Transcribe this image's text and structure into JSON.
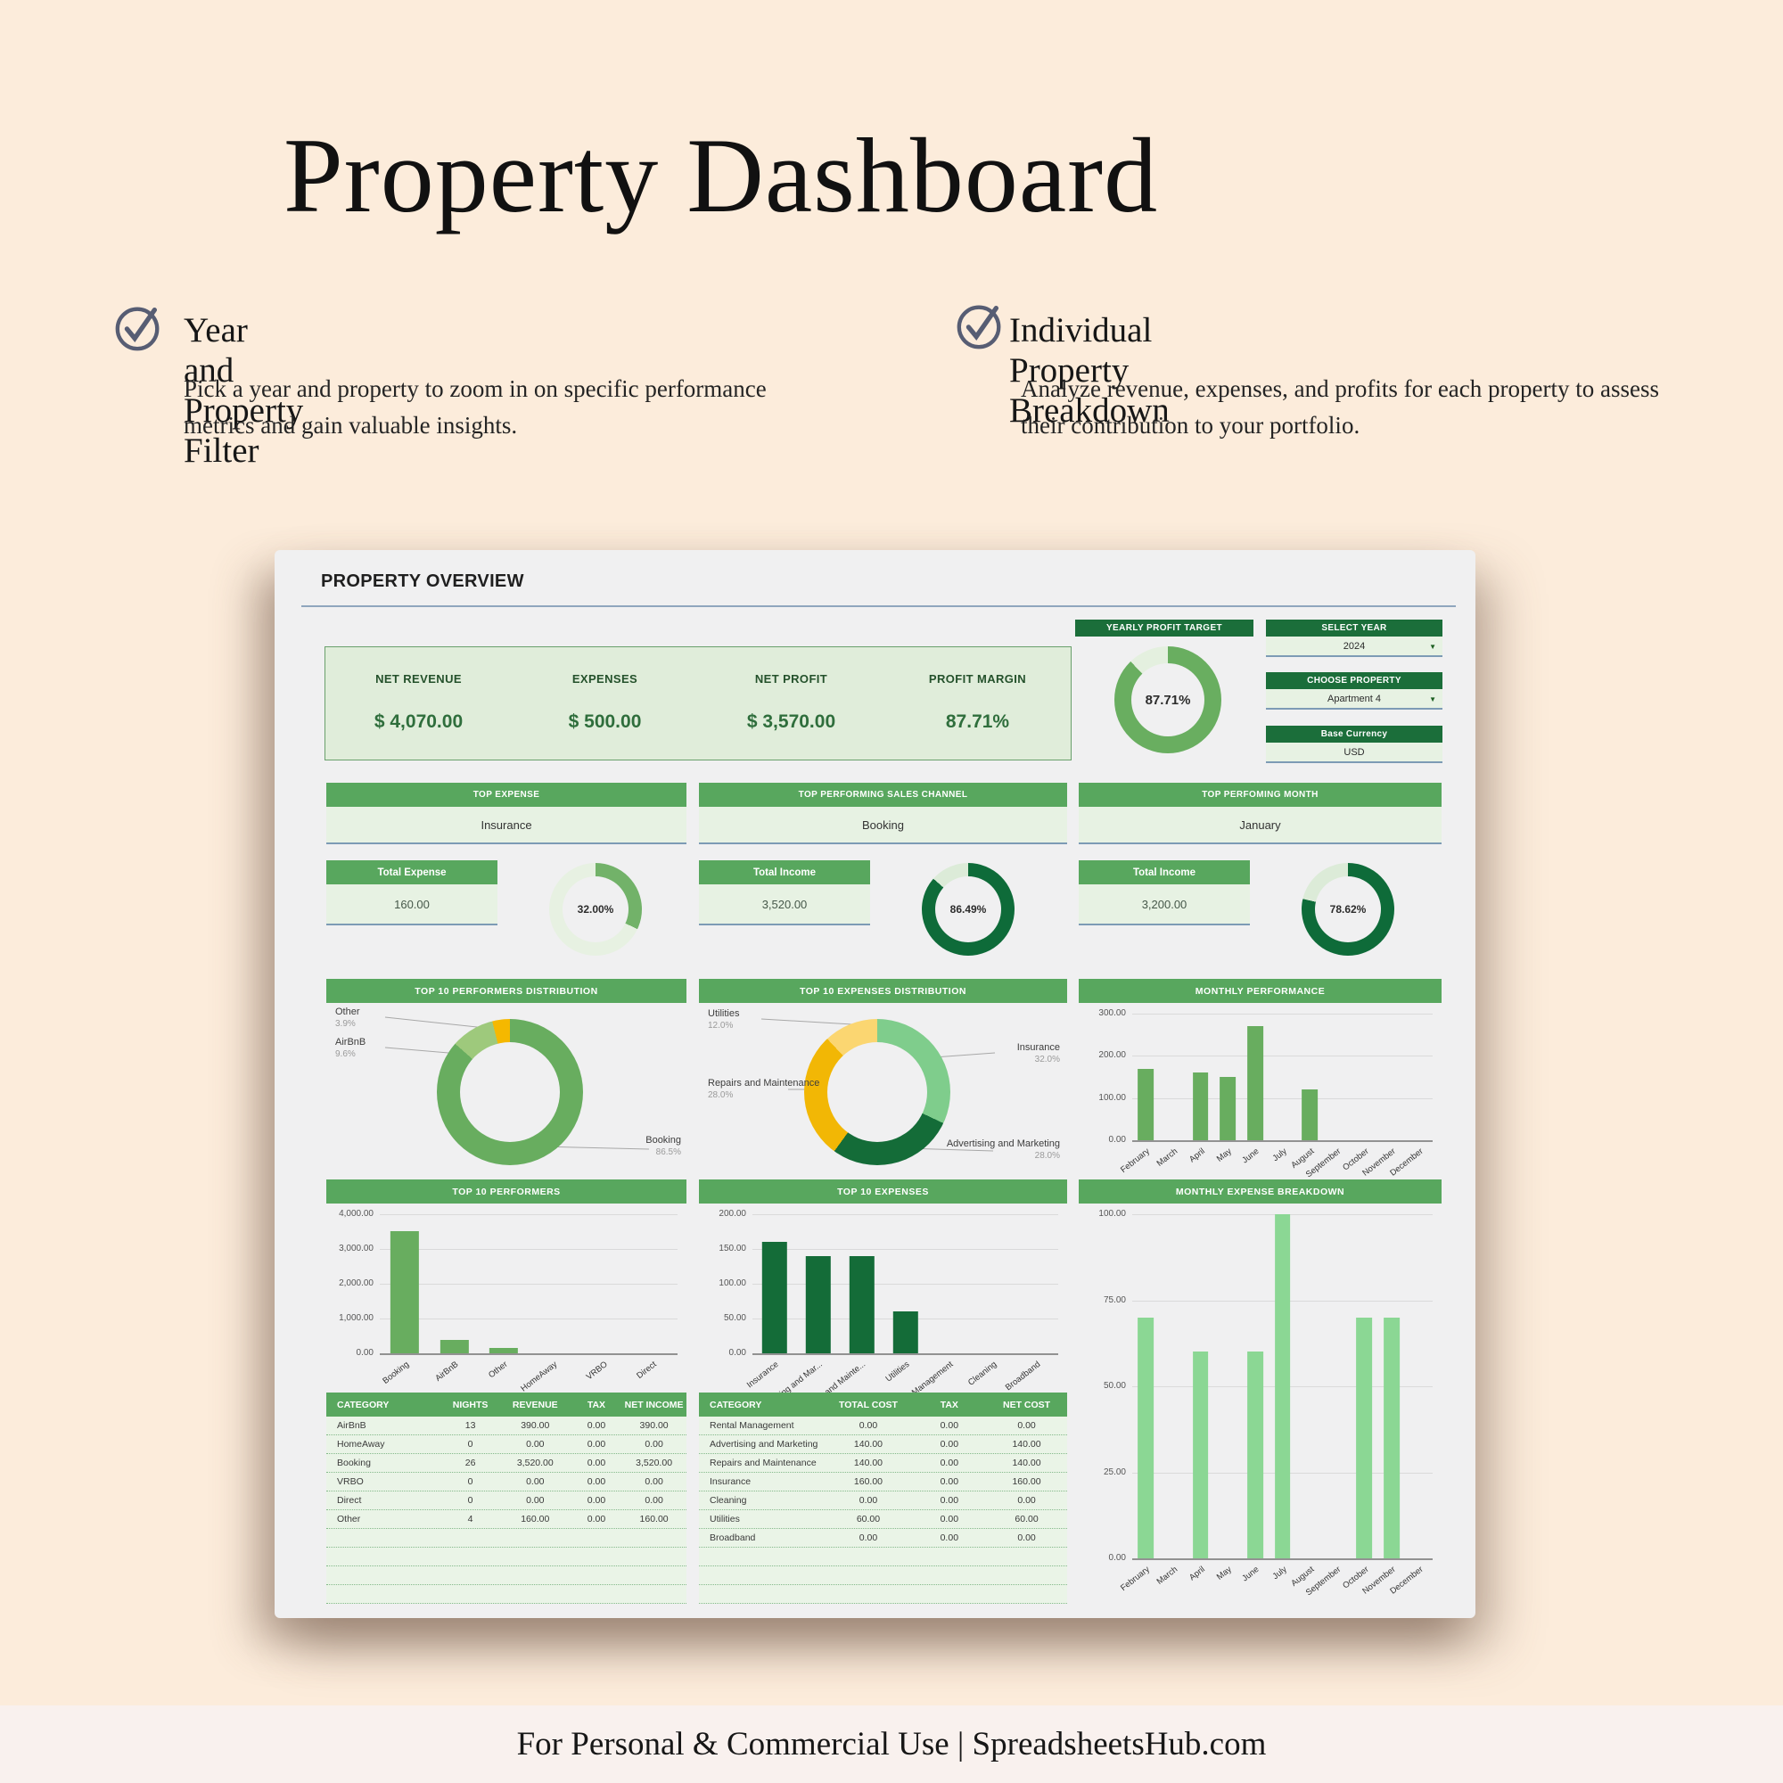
{
  "page": {
    "title": "Property Dashboard",
    "footer": "For Personal & Commercial Use  |  SpreadsheetsHub.com"
  },
  "features": [
    {
      "title": "Year and Property Filter",
      "description": "Pick a year and property to zoom in on specific performance metrics and gain valuable insights."
    },
    {
      "title": "Individual Property Breakdown",
      "description": "Analyze revenue, expenses, and profits for each property to assess their contribution to your portfolio."
    }
  ],
  "dashboard": {
    "title": "PROPERTY OVERVIEW",
    "kpis": [
      {
        "label": "NET REVENUE",
        "value": "$ 4,070.00"
      },
      {
        "label": "EXPENSES",
        "value": "$ 500.00"
      },
      {
        "label": "NET PROFIT",
        "value": "$ 3,570.00"
      },
      {
        "label": "PROFIT MARGIN",
        "value": "87.71%"
      }
    ],
    "yearly_profit_target": {
      "title": "YEARLY PROFIT TARGET",
      "value_label": "87.71%",
      "percent": 87.71,
      "color": "#69ae60",
      "rest_color": "#e4f0df"
    },
    "filters": [
      {
        "label": "SELECT YEAR",
        "value": "2024"
      },
      {
        "label": "CHOOSE PROPERTY",
        "value": "Apartment 4"
      },
      {
        "label": "Base Currency",
        "value": "USD"
      }
    ],
    "highlights": [
      {
        "label": "TOP EXPENSE",
        "value": "Insurance"
      },
      {
        "label": "TOP PERFORMING SALES CHANNEL",
        "value": "Booking"
      },
      {
        "label": "TOP PERFOMING MONTH",
        "value": "January"
      }
    ],
    "gauges": [
      {
        "label": "Total Expense",
        "value": "160.00",
        "value_label": "32.00%",
        "percent": 32.0,
        "color": "#72b269",
        "rest_color": "#e7f1e2"
      },
      {
        "label": "Total Income",
        "value": "3,520.00",
        "value_label": "86.49%",
        "percent": 86.49,
        "color": "#0e6b39",
        "rest_color": "#dcebd8"
      },
      {
        "label": "Total Income",
        "value": "3,200.00",
        "value_label": "78.62%",
        "percent": 78.62,
        "color": "#0e6b39",
        "rest_color": "#dcebd8"
      }
    ],
    "tables": [
      {
        "headers": [
          "CATEGORY",
          "NIGHTS",
          "REVENUE",
          "TAX",
          "NET INCOME"
        ],
        "rows": [
          [
            "AirBnB",
            "13",
            "390.00",
            "0.00",
            "390.00"
          ],
          [
            "HomeAway",
            "0",
            "0.00",
            "0.00",
            "0.00"
          ],
          [
            "Booking",
            "26",
            "3,520.00",
            "0.00",
            "3,520.00"
          ],
          [
            "VRBO",
            "0",
            "0.00",
            "0.00",
            "0.00"
          ],
          [
            "Direct",
            "0",
            "0.00",
            "0.00",
            "0.00"
          ],
          [
            "Other",
            "4",
            "160.00",
            "0.00",
            "160.00"
          ],
          [
            "",
            "",
            "",
            "",
            ""
          ],
          [
            "",
            "",
            "",
            "",
            ""
          ],
          [
            "",
            "",
            "",
            "",
            ""
          ],
          [
            "",
            "",
            "",
            "",
            ""
          ]
        ]
      },
      {
        "headers": [
          "CATEGORY",
          "TOTAL COST",
          "TAX",
          "NET COST"
        ],
        "rows": [
          [
            "Rental Management",
            "0.00",
            "0.00",
            "0.00"
          ],
          [
            "Advertising and Marketing",
            "140.00",
            "0.00",
            "140.00"
          ],
          [
            "Repairs and Maintenance",
            "140.00",
            "0.00",
            "140.00"
          ],
          [
            "Insurance",
            "160.00",
            "0.00",
            "160.00"
          ],
          [
            "Cleaning",
            "0.00",
            "0.00",
            "0.00"
          ],
          [
            "Utilities",
            "60.00",
            "0.00",
            "60.00"
          ],
          [
            "Broadband",
            "0.00",
            "0.00",
            "0.00"
          ],
          [
            "",
            "",
            "",
            ""
          ],
          [
            "",
            "",
            "",
            ""
          ],
          [
            "",
            "",
            "",
            ""
          ]
        ]
      }
    ]
  },
  "chart_data": [
    {
      "type": "pie",
      "title": "TOP 10 PERFORMERS DISTRIBUTION",
      "labels": [
        "Booking",
        "AirBnB",
        "Other"
      ],
      "values": [
        86.5,
        9.6,
        3.9
      ],
      "colors": [
        "#68ad5f",
        "#9ec97c",
        "#f5b800"
      ],
      "annotations": [
        {
          "label": "Other",
          "pct": "3.9%"
        },
        {
          "label": "AirBnB",
          "pct": "9.6%"
        },
        {
          "label": "Booking",
          "pct": "86.5%"
        }
      ]
    },
    {
      "type": "pie",
      "title": "TOP 10 EXPENSES DISTRIBUTION",
      "labels": [
        "Insurance",
        "Advertising and Marketing",
        "Repairs and Maintenance",
        "Utilities"
      ],
      "values": [
        32.0,
        28.0,
        28.0,
        12.0
      ],
      "colors": [
        "#7fcd8c",
        "#146c38",
        "#f2b705",
        "#fbd671"
      ],
      "annotations": [
        {
          "label": "Utilities",
          "pct": "12.0%"
        },
        {
          "label": "Insurance",
          "pct": "32.0%"
        },
        {
          "label": "Repairs and Maintenance",
          "pct": "28.0%"
        },
        {
          "label": "Advertising and Marketing",
          "pct": "28.0%"
        }
      ]
    },
    {
      "type": "bar",
      "title": "MONTHLY PERFORMANCE",
      "categories": [
        "February",
        "March",
        "April",
        "May",
        "June",
        "July",
        "August",
        "September",
        "October",
        "November",
        "December"
      ],
      "values": [
        170,
        0,
        160,
        150,
        270,
        0,
        120,
        0,
        0,
        0,
        0
      ],
      "ylim": [
        0,
        300
      ],
      "yticks": [
        "300.00",
        "200.00",
        "100.00",
        "0.00"
      ],
      "bar_color": "#68ad5f"
    },
    {
      "type": "bar",
      "title": "TOP 10 PERFORMERS",
      "categories": [
        "Booking",
        "AirBnB",
        "Other",
        "HomeAway",
        "VRBO",
        "Direct"
      ],
      "values": [
        3520,
        390,
        160,
        0,
        0,
        0
      ],
      "ylim": [
        0,
        4000
      ],
      "yticks": [
        "4,000.00",
        "3,000.00",
        "2,000.00",
        "1,000.00",
        "0.00"
      ],
      "bar_color": "#68ad5f"
    },
    {
      "type": "bar",
      "title": "TOP 10 EXPENSES",
      "categories": [
        "Insurance",
        "Advertising and Mar...",
        "Repairs and Mainte...",
        "Utilities",
        "Rental Management",
        "Cleaning",
        "Broadband"
      ],
      "values": [
        160,
        140,
        140,
        60,
        0,
        0,
        0
      ],
      "ylim": [
        0,
        200
      ],
      "yticks": [
        "200.00",
        "150.00",
        "100.00",
        "50.00",
        "0.00"
      ],
      "bar_color": "#146c38"
    },
    {
      "type": "bar",
      "title": "MONTHLY EXPENSE BREAKDOWN",
      "categories": [
        "February",
        "March",
        "April",
        "May",
        "June",
        "July",
        "August",
        "September",
        "October",
        "November",
        "December"
      ],
      "values": [
        70,
        0,
        60,
        0,
        60,
        100,
        0,
        0,
        70,
        70,
        0
      ],
      "ylim": [
        0,
        100
      ],
      "yticks": [
        "100.00",
        "75.00",
        "50.00",
        "25.00",
        "0.00"
      ],
      "bar_color": "#8bd794"
    }
  ]
}
